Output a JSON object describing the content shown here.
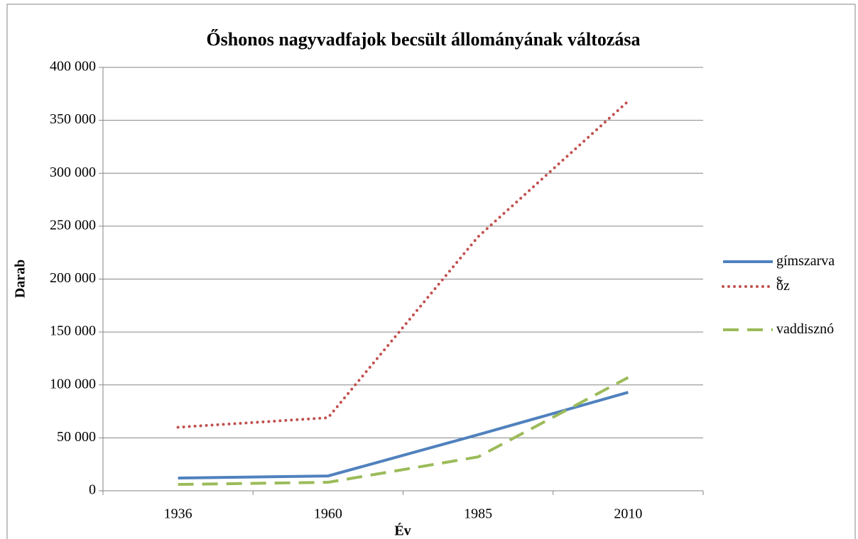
{
  "chart_data": {
    "type": "line",
    "title": "Őshonos nagyvadfajok becsült állományának változása",
    "x_label": "Év",
    "y_label": "Darab",
    "categories": [
      "1936",
      "1960",
      "1985",
      "2010"
    ],
    "series": [
      {
        "name": "gímszarvas",
        "color": "#4f81bd",
        "style": "solid",
        "values": [
          12000,
          14000,
          53000,
          93000
        ]
      },
      {
        "name": "őz",
        "color": "#c0504d",
        "style": "dotted",
        "values": [
          60000,
          69000,
          240000,
          368000
        ]
      },
      {
        "name": "vaddisznó",
        "color": "#9bbb59",
        "style": "dashed",
        "values": [
          6000,
          8000,
          32000,
          107000
        ]
      }
    ],
    "ylim": [
      0,
      400000
    ],
    "yticks": [
      0,
      {
        "value": 50000,
        "label": "50 000"
      },
      {
        "value": 100000,
        "label": "100 000"
      },
      {
        "value": 150000,
        "label": "150 000"
      },
      {
        "value": 200000,
        "label": "200 000"
      },
      {
        "value": 250000,
        "label": "250 000"
      },
      {
        "value": 300000,
        "label": "300 000"
      },
      {
        "value": 350000,
        "label": "350 000"
      },
      {
        "value": 400000,
        "label": "400 000"
      }
    ],
    "grid": true,
    "legend": "right"
  }
}
